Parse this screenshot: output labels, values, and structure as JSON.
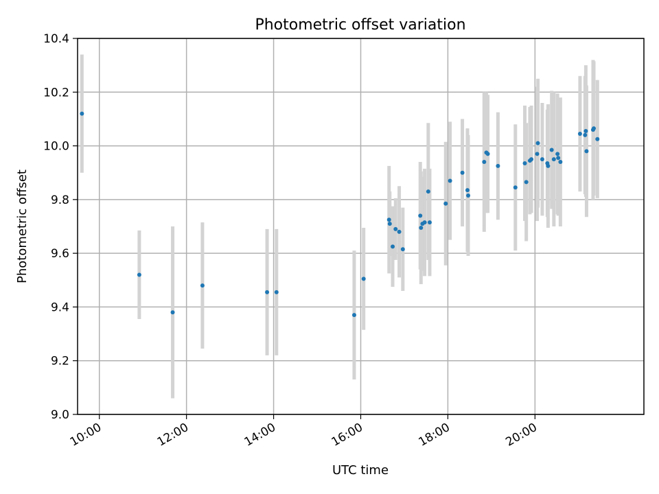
{
  "chart_data": {
    "type": "scatter",
    "title": "Photometric offset variation",
    "xlabel": "UTC time",
    "ylabel": "Photometric offset",
    "xlim": [
      "09:30",
      "22:30"
    ],
    "ylim": [
      9.0,
      10.4
    ],
    "x_ticks": [
      "10:00",
      "12:00",
      "14:00",
      "16:00",
      "18:00",
      "20:00"
    ],
    "y_ticks": [
      "9.0",
      "9.2",
      "9.4",
      "9.6",
      "9.8",
      "10.0",
      "10.2",
      "10.4"
    ],
    "grid": true,
    "colors": {
      "point": "#1f77b4",
      "errorbar": "#d3d3d3"
    },
    "series": [
      {
        "x": [
          "09:36",
          "10:55",
          "11:41",
          "12:22",
          "13:51",
          "14:04",
          "15:51",
          "16:04",
          "16:39",
          "16:40",
          "16:44",
          "16:48",
          "16:53",
          "16:58",
          "17:22",
          "17:23",
          "17:25",
          "17:28",
          "17:33",
          "17:35",
          "17:57",
          "18:03",
          "18:20",
          "18:27",
          "18:28",
          "18:50",
          "18:53",
          "18:55",
          "19:09",
          "19:33",
          "19:46",
          "19:48",
          "19:53",
          "19:55",
          "20:03",
          "20:04",
          "20:10",
          "20:17",
          "20:18",
          "20:23",
          "20:26",
          "20:31",
          "20:32",
          "20:35",
          "21:02",
          "21:09",
          "21:10",
          "21:11",
          "21:20",
          "21:21",
          "21:26"
        ],
        "y": [
          10.12,
          9.52,
          9.38,
          9.48,
          9.455,
          9.455,
          9.37,
          9.505,
          9.725,
          9.71,
          9.625,
          9.69,
          9.68,
          9.615,
          9.74,
          9.695,
          9.71,
          9.715,
          9.83,
          9.715,
          9.785,
          9.87,
          9.9,
          9.835,
          9.815,
          9.94,
          9.975,
          9.97,
          9.925,
          9.845,
          9.935,
          9.865,
          9.945,
          9.95,
          9.97,
          10.01,
          9.95,
          9.935,
          9.925,
          9.985,
          9.95,
          9.97,
          9.955,
          9.94,
          10.045,
          10.04,
          10.055,
          9.98,
          10.06,
          10.065,
          10.025
        ],
        "yerr": [
          0.22,
          0.165,
          0.32,
          0.235,
          0.235,
          0.235,
          0.24,
          0.19,
          0.2,
          0.12,
          0.15,
          0.115,
          0.17,
          0.155,
          0.2,
          0.21,
          0.175,
          0.2,
          0.255,
          0.2,
          0.23,
          0.22,
          0.2,
          0.23,
          0.225,
          0.26,
          0.225,
          0.22,
          0.2,
          0.235,
          0.215,
          0.22,
          0.2,
          0.2,
          0.25,
          0.24,
          0.21,
          0.2,
          0.23,
          0.22,
          0.25,
          0.225,
          0.215,
          0.24,
          0.215,
          0.22,
          0.245,
          0.245,
          0.26,
          0.25,
          0.22
        ]
      }
    ]
  }
}
